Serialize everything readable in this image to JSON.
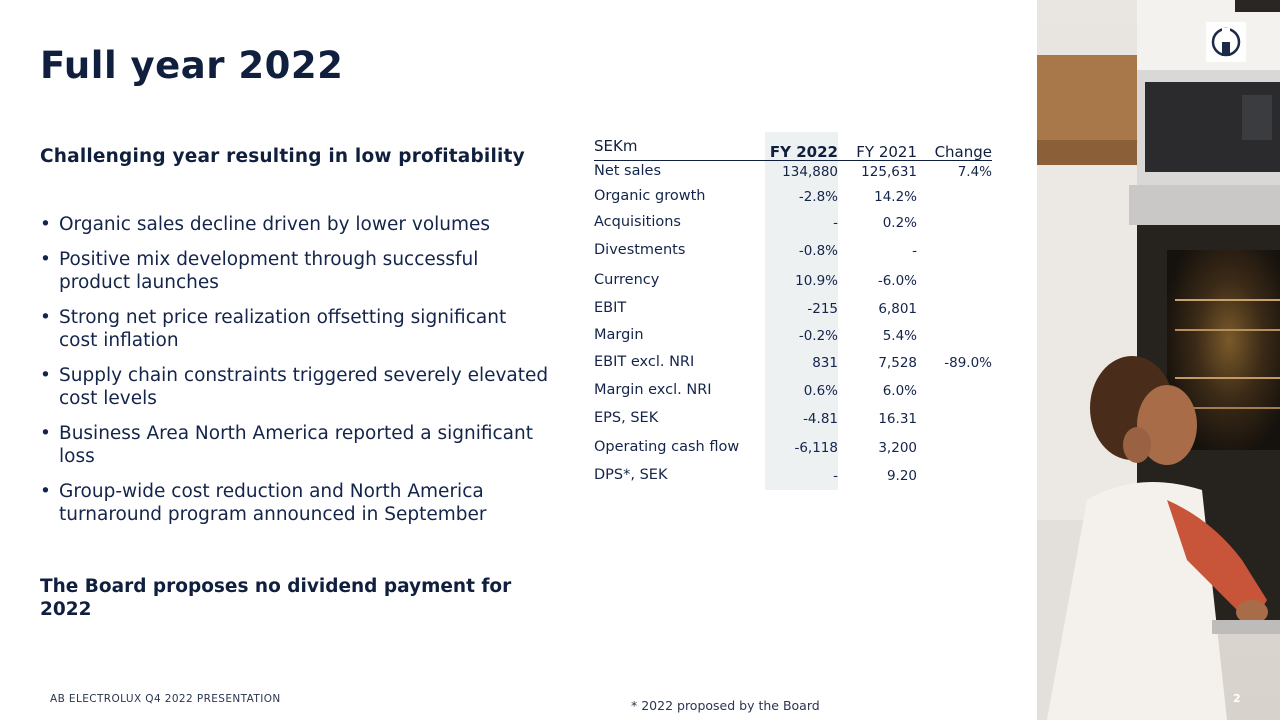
{
  "slide": {
    "title": "Full year 2022",
    "subheading": "Challenging year resulting in low profitability",
    "bullets": [
      "Organic sales decline driven by lower volumes",
      "Positive mix development through successful product launches",
      "Strong net price realization offsetting significant cost inflation",
      "Supply chain constraints triggered severely elevated cost levels",
      "Business Area North America reported a significant loss",
      "Group-wide cost reduction and North America turnaround program announced in September"
    ],
    "board_statement": "The Board proposes no dividend payment for 2022"
  },
  "table": {
    "unit_label": "SEKm",
    "columns": [
      "FY 2022",
      "FY 2021",
      "Change"
    ],
    "rows": [
      {
        "label": "Net sales",
        "fy2022": "134,880",
        "fy2021": "125,631",
        "change": "7.4%"
      },
      {
        "label": "Organic growth",
        "fy2022": "-2.8%",
        "fy2021": "14.2%",
        "change": ""
      },
      {
        "label": "Acquisitions",
        "fy2022": "-",
        "fy2021": "0.2%",
        "change": ""
      },
      {
        "label": "Divestments",
        "fy2022": "-0.8%",
        "fy2021": "-",
        "change": ""
      },
      {
        "label": "Currency",
        "fy2022": "10.9%",
        "fy2021": "-6.0%",
        "change": ""
      },
      {
        "label": "EBIT",
        "fy2022": "-215",
        "fy2021": "6,801",
        "change": ""
      },
      {
        "label": "Margin",
        "fy2022": "-0.2%",
        "fy2021": "5.4%",
        "change": ""
      },
      {
        "label": "EBIT excl. NRI",
        "fy2022": "831",
        "fy2021": "7,528",
        "change": "-89.0%"
      },
      {
        "label": "Margin excl. NRI",
        "fy2022": "0.6%",
        "fy2021": "6.0%",
        "change": ""
      },
      {
        "label": "EPS, SEK",
        "fy2022": "-4.81",
        "fy2021": "16.31",
        "change": ""
      },
      {
        "label": "Operating cash flow",
        "fy2022": "-6,118",
        "fy2021": "3,200",
        "change": ""
      },
      {
        "label": "DPS*, SEK",
        "fy2022": "-",
        "fy2021": "9.20",
        "change": ""
      }
    ]
  },
  "footer": {
    "left_text": "AB ELECTROLUX Q4 2022 PRESENTATION",
    "footnote": "* 2022 proposed by the Board",
    "page_number": "2"
  },
  "colors": {
    "navy": "#0f1f3d",
    "highlight_column": "#eef1f2"
  },
  "icons": [
    "electrolux-logo-icon"
  ]
}
